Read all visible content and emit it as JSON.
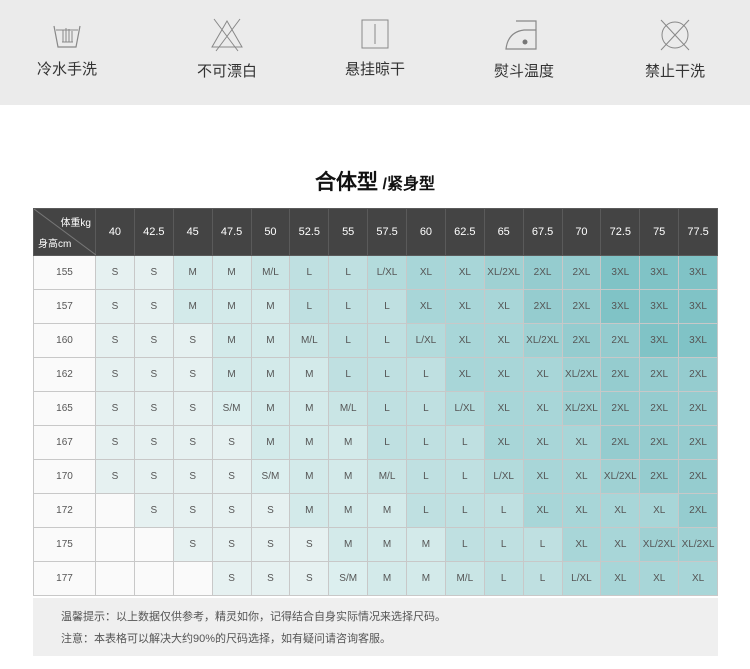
{
  "care": [
    {
      "icon": "hand-wash-icon",
      "label": "冷水手洗"
    },
    {
      "icon": "no-bleach-icon",
      "label": "不可漂白"
    },
    {
      "icon": "hang-dry-icon",
      "label": "悬挂晾干"
    },
    {
      "icon": "iron-icon",
      "label": "熨斗温度"
    },
    {
      "icon": "no-dry-clean-icon",
      "label": "禁止干洗"
    }
  ],
  "title": {
    "main": "合体型",
    "sub": "/紧身型"
  },
  "table": {
    "corner_weight": "体重kg",
    "corner_height": "身高cm",
    "weights": [
      "40",
      "42.5",
      "45",
      "47.5",
      "50",
      "52.5",
      "55",
      "57.5",
      "60",
      "62.5",
      "65",
      "67.5",
      "70",
      "72.5",
      "75",
      "77.5"
    ],
    "rows": [
      {
        "height": "155",
        "sizes": [
          "S",
          "S",
          "M",
          "M",
          "M/L",
          "L",
          "L",
          "L/XL",
          "XL",
          "XL",
          "XL/2XL",
          "2XL",
          "2XL",
          "3XL",
          "3XL",
          "3XL"
        ]
      },
      {
        "height": "157",
        "sizes": [
          "S",
          "S",
          "M",
          "M",
          "M",
          "L",
          "L",
          "L",
          "XL",
          "XL",
          "XL",
          "2XL",
          "2XL",
          "3XL",
          "3XL",
          "3XL"
        ]
      },
      {
        "height": "160",
        "sizes": [
          "S",
          "S",
          "S",
          "M",
          "M",
          "M/L",
          "L",
          "L",
          "L/XL",
          "XL",
          "XL",
          "XL/2XL",
          "2XL",
          "2XL",
          "3XL",
          "3XL"
        ]
      },
      {
        "height": "162",
        "sizes": [
          "S",
          "S",
          "S",
          "M",
          "M",
          "M",
          "L",
          "L",
          "L",
          "XL",
          "XL",
          "XL",
          "XL/2XL",
          "2XL",
          "2XL",
          "2XL"
        ]
      },
      {
        "height": "165",
        "sizes": [
          "S",
          "S",
          "S",
          "S/M",
          "M",
          "M",
          "M/L",
          "L",
          "L",
          "L/XL",
          "XL",
          "XL",
          "XL/2XL",
          "2XL",
          "2XL",
          "2XL"
        ]
      },
      {
        "height": "167",
        "sizes": [
          "S",
          "S",
          "S",
          "S",
          "M",
          "M",
          "M",
          "L",
          "L",
          "L",
          "XL",
          "XL",
          "XL",
          "2XL",
          "2XL",
          "2XL"
        ]
      },
      {
        "height": "170",
        "sizes": [
          "S",
          "S",
          "S",
          "S",
          "S/M",
          "M",
          "M",
          "M/L",
          "L",
          "L",
          "L/XL",
          "XL",
          "XL",
          "XL/2XL",
          "2XL",
          "2XL"
        ]
      },
      {
        "height": "172",
        "sizes": [
          "",
          "S",
          "S",
          "S",
          "S",
          "M",
          "M",
          "M",
          "L",
          "L",
          "L",
          "XL",
          "XL",
          "XL",
          "XL",
          "2XL"
        ]
      },
      {
        "height": "175",
        "sizes": [
          "",
          "",
          "S",
          "S",
          "S",
          "S",
          "M",
          "M",
          "M",
          "L",
          "L",
          "L",
          "XL",
          "XL",
          "XL/2XL",
          "XL/2XL"
        ]
      },
      {
        "height": "177",
        "sizes": [
          "",
          "",
          "",
          "S",
          "S",
          "S",
          "S/M",
          "M",
          "M",
          "M/L",
          "L",
          "L",
          "L/XL",
          "XL",
          "XL",
          "XL"
        ]
      }
    ]
  },
  "tips": [
    "温馨提示：以上数据仅供参考，精灵如你，记得结合自身实际情况来选择尺码。",
    "注意：本表格可以解决大约90%的尺码选择，如有疑问请咨询客服。"
  ],
  "colors": {
    "header": "#444444",
    "size_scale": [
      "#e6f1f1",
      "#dcefef",
      "#d3eaea",
      "#c9e5e5",
      "#bfe0e1",
      "#b3dbdc",
      "#a8d6d8",
      "#9fd1d3",
      "#95cccf",
      "#80c3c6"
    ]
  }
}
